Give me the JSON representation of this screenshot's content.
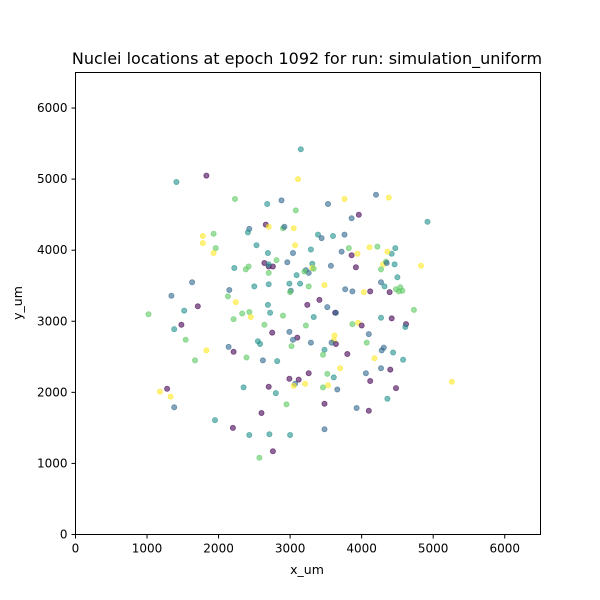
{
  "chart_data": {
    "type": "scatter",
    "title": "Nuclei locations at epoch 1092 for run: simulation_uniform",
    "xlabel": "x_um",
    "ylabel": "y_um",
    "xlim": [
      0,
      6500
    ],
    "ylim": [
      0,
      6500
    ],
    "xticks": [
      0,
      1000,
      2000,
      3000,
      4000,
      5000,
      6000
    ],
    "yticks": [
      0,
      1000,
      2000,
      3000,
      4000,
      5000,
      6000
    ],
    "grid": false,
    "legend": "none",
    "marker_alpha": 0.6,
    "colormap": "viridis",
    "palette": {
      "p": "#440154",
      "b": "#31688e",
      "t": "#21918c",
      "g": "#5ec962",
      "y": "#fde725"
    },
    "points": [
      {
        "x": 3150,
        "y": 5420,
        "c": "t"
      },
      {
        "x": 1410,
        "y": 4960,
        "c": "t"
      },
      {
        "x": 1830,
        "y": 5050,
        "c": "p"
      },
      {
        "x": 3110,
        "y": 5000,
        "c": "y"
      },
      {
        "x": 2230,
        "y": 4720,
        "c": "g"
      },
      {
        "x": 2680,
        "y": 4650,
        "c": "t"
      },
      {
        "x": 2880,
        "y": 4700,
        "c": "b"
      },
      {
        "x": 3080,
        "y": 4560,
        "c": "g"
      },
      {
        "x": 3530,
        "y": 4650,
        "c": "b"
      },
      {
        "x": 3760,
        "y": 4720,
        "c": "y"
      },
      {
        "x": 4380,
        "y": 4740,
        "c": "y"
      },
      {
        "x": 4200,
        "y": 4780,
        "c": "b"
      },
      {
        "x": 3860,
        "y": 4450,
        "c": "b"
      },
      {
        "x": 3960,
        "y": 4500,
        "c": "p"
      },
      {
        "x": 4920,
        "y": 4400,
        "c": "t"
      },
      {
        "x": 1780,
        "y": 4200,
        "c": "y"
      },
      {
        "x": 1930,
        "y": 4230,
        "c": "g"
      },
      {
        "x": 1780,
        "y": 4100,
        "c": "y"
      },
      {
        "x": 1960,
        "y": 4030,
        "c": "g"
      },
      {
        "x": 1930,
        "y": 3960,
        "c": "y"
      },
      {
        "x": 2430,
        "y": 4300,
        "c": "b"
      },
      {
        "x": 2410,
        "y": 4250,
        "c": "t"
      },
      {
        "x": 2530,
        "y": 4070,
        "c": "t"
      },
      {
        "x": 2660,
        "y": 4360,
        "c": "p"
      },
      {
        "x": 2700,
        "y": 4330,
        "c": "y"
      },
      {
        "x": 2900,
        "y": 4310,
        "c": "g"
      },
      {
        "x": 2920,
        "y": 4330,
        "c": "b"
      },
      {
        "x": 3050,
        "y": 4310,
        "c": "y"
      },
      {
        "x": 3070,
        "y": 4070,
        "c": "y"
      },
      {
        "x": 2690,
        "y": 3960,
        "c": "t"
      },
      {
        "x": 3040,
        "y": 3960,
        "c": "b"
      },
      {
        "x": 3290,
        "y": 4010,
        "c": "t"
      },
      {
        "x": 3390,
        "y": 4220,
        "c": "t"
      },
      {
        "x": 3440,
        "y": 4170,
        "c": "b"
      },
      {
        "x": 3600,
        "y": 4200,
        "c": "t"
      },
      {
        "x": 3760,
        "y": 4220,
        "c": "b"
      },
      {
        "x": 3820,
        "y": 4030,
        "c": "g"
      },
      {
        "x": 3720,
        "y": 3980,
        "c": "b"
      },
      {
        "x": 3860,
        "y": 3930,
        "c": "p"
      },
      {
        "x": 3940,
        "y": 3950,
        "c": "y"
      },
      {
        "x": 4110,
        "y": 4040,
        "c": "y"
      },
      {
        "x": 4220,
        "y": 4050,
        "c": "g"
      },
      {
        "x": 4420,
        "y": 3950,
        "c": "t"
      },
      {
        "x": 4470,
        "y": 4030,
        "c": "t"
      },
      {
        "x": 4360,
        "y": 3980,
        "c": "y"
      },
      {
        "x": 4300,
        "y": 3800,
        "c": "y"
      },
      {
        "x": 4340,
        "y": 3840,
        "c": "g"
      },
      {
        "x": 4270,
        "y": 3730,
        "c": "g"
      },
      {
        "x": 4350,
        "y": 3820,
        "c": "b"
      },
      {
        "x": 4460,
        "y": 3800,
        "c": "t"
      },
      {
        "x": 4500,
        "y": 3620,
        "c": "t"
      },
      {
        "x": 4830,
        "y": 3780,
        "c": "y"
      },
      {
        "x": 3920,
        "y": 3760,
        "c": "p"
      },
      {
        "x": 3570,
        "y": 3780,
        "c": "b"
      },
      {
        "x": 3310,
        "y": 3810,
        "c": "t"
      },
      {
        "x": 3310,
        "y": 3750,
        "c": "y"
      },
      {
        "x": 3330,
        "y": 3740,
        "c": "g"
      },
      {
        "x": 3220,
        "y": 3720,
        "c": "b"
      },
      {
        "x": 3260,
        "y": 3680,
        "c": "b"
      },
      {
        "x": 3200,
        "y": 3700,
        "c": "g"
      },
      {
        "x": 3090,
        "y": 3650,
        "c": "t"
      },
      {
        "x": 2960,
        "y": 3830,
        "c": "b"
      },
      {
        "x": 2810,
        "y": 3860,
        "c": "g"
      },
      {
        "x": 2640,
        "y": 3820,
        "c": "p"
      },
      {
        "x": 2700,
        "y": 3770,
        "c": "p"
      },
      {
        "x": 2760,
        "y": 3770,
        "c": "p"
      },
      {
        "x": 2700,
        "y": 3800,
        "c": "t"
      },
      {
        "x": 2700,
        "y": 3680,
        "c": "g"
      },
      {
        "x": 2420,
        "y": 3770,
        "c": "g"
      },
      {
        "x": 2380,
        "y": 3730,
        "c": "g"
      },
      {
        "x": 2220,
        "y": 3750,
        "c": "t"
      },
      {
        "x": 1630,
        "y": 3550,
        "c": "b"
      },
      {
        "x": 2500,
        "y": 3490,
        "c": "t"
      },
      {
        "x": 2700,
        "y": 3520,
        "c": "t"
      },
      {
        "x": 2990,
        "y": 3530,
        "c": "t"
      },
      {
        "x": 3010,
        "y": 3430,
        "c": "b"
      },
      {
        "x": 3140,
        "y": 3530,
        "c": "t"
      },
      {
        "x": 3260,
        "y": 3490,
        "c": "g"
      },
      {
        "x": 3480,
        "y": 3510,
        "c": "y"
      },
      {
        "x": 3770,
        "y": 3450,
        "c": "b"
      },
      {
        "x": 3870,
        "y": 3420,
        "c": "b"
      },
      {
        "x": 4030,
        "y": 3410,
        "c": "y"
      },
      {
        "x": 4120,
        "y": 3420,
        "c": "p"
      },
      {
        "x": 4270,
        "y": 3550,
        "c": "b"
      },
      {
        "x": 4320,
        "y": 3490,
        "c": "t"
      },
      {
        "x": 4390,
        "y": 3410,
        "c": "p"
      },
      {
        "x": 4480,
        "y": 3450,
        "c": "g"
      },
      {
        "x": 4540,
        "y": 3480,
        "c": "g"
      },
      {
        "x": 4570,
        "y": 3430,
        "c": "g"
      },
      {
        "x": 4520,
        "y": 3420,
        "c": "g"
      },
      {
        "x": 4730,
        "y": 3160,
        "c": "g"
      },
      {
        "x": 2150,
        "y": 3440,
        "c": "b"
      },
      {
        "x": 2130,
        "y": 3350,
        "c": "g"
      },
      {
        "x": 1340,
        "y": 3360,
        "c": "b"
      },
      {
        "x": 1710,
        "y": 3210,
        "c": "p"
      },
      {
        "x": 1520,
        "y": 3150,
        "c": "t"
      },
      {
        "x": 1020,
        "y": 3100,
        "c": "g"
      },
      {
        "x": 2240,
        "y": 3270,
        "c": "y"
      },
      {
        "x": 2430,
        "y": 3130,
        "c": "g"
      },
      {
        "x": 2450,
        "y": 3060,
        "c": "y"
      },
      {
        "x": 2690,
        "y": 3230,
        "c": "t"
      },
      {
        "x": 2720,
        "y": 3120,
        "c": "t"
      },
      {
        "x": 2330,
        "y": 3110,
        "c": "g"
      },
      {
        "x": 2210,
        "y": 3030,
        "c": "g"
      },
      {
        "x": 2900,
        "y": 3080,
        "c": "g"
      },
      {
        "x": 3000,
        "y": 3410,
        "c": "g"
      },
      {
        "x": 3240,
        "y": 3230,
        "c": "p"
      },
      {
        "x": 3410,
        "y": 3300,
        "c": "p"
      },
      {
        "x": 3520,
        "y": 3200,
        "c": "b"
      },
      {
        "x": 3630,
        "y": 3120,
        "c": "p"
      },
      {
        "x": 3330,
        "y": 3060,
        "c": "t"
      },
      {
        "x": 3640,
        "y": 3120,
        "c": "b"
      },
      {
        "x": 1480,
        "y": 2950,
        "c": "p"
      },
      {
        "x": 1380,
        "y": 2890,
        "c": "t"
      },
      {
        "x": 1540,
        "y": 2740,
        "c": "g"
      },
      {
        "x": 2640,
        "y": 2950,
        "c": "g"
      },
      {
        "x": 2750,
        "y": 2840,
        "c": "p"
      },
      {
        "x": 2990,
        "y": 2850,
        "c": "b"
      },
      {
        "x": 3220,
        "y": 2940,
        "c": "g"
      },
      {
        "x": 3100,
        "y": 2770,
        "c": "p"
      },
      {
        "x": 3040,
        "y": 2740,
        "c": "b"
      },
      {
        "x": 3020,
        "y": 2650,
        "c": "g"
      },
      {
        "x": 3290,
        "y": 2700,
        "c": "b"
      },
      {
        "x": 3620,
        "y": 2800,
        "c": "y"
      },
      {
        "x": 3610,
        "y": 2730,
        "c": "y"
      },
      {
        "x": 3640,
        "y": 2680,
        "c": "p"
      },
      {
        "x": 3580,
        "y": 2700,
        "c": "b"
      },
      {
        "x": 3480,
        "y": 2600,
        "c": "t"
      },
      {
        "x": 3870,
        "y": 2960,
        "c": "g"
      },
      {
        "x": 3950,
        "y": 2980,
        "c": "y"
      },
      {
        "x": 4000,
        "y": 2940,
        "c": "p"
      },
      {
        "x": 4100,
        "y": 2820,
        "c": "b"
      },
      {
        "x": 4270,
        "y": 3050,
        "c": "t"
      },
      {
        "x": 4420,
        "y": 3040,
        "c": "p"
      },
      {
        "x": 4620,
        "y": 2960,
        "c": "p"
      },
      {
        "x": 4610,
        "y": 2920,
        "c": "t"
      },
      {
        "x": 4280,
        "y": 2590,
        "c": "b"
      },
      {
        "x": 4310,
        "y": 2630,
        "c": "b"
      },
      {
        "x": 4440,
        "y": 2560,
        "c": "t"
      },
      {
        "x": 4580,
        "y": 2460,
        "c": "t"
      },
      {
        "x": 4180,
        "y": 2480,
        "c": "y"
      },
      {
        "x": 4070,
        "y": 2700,
        "c": "g"
      },
      {
        "x": 3800,
        "y": 2540,
        "c": "p"
      },
      {
        "x": 3460,
        "y": 2530,
        "c": "g"
      },
      {
        "x": 3700,
        "y": 2340,
        "c": "y"
      },
      {
        "x": 3520,
        "y": 2260,
        "c": "g"
      },
      {
        "x": 3610,
        "y": 2210,
        "c": "t"
      },
      {
        "x": 3260,
        "y": 2270,
        "c": "p"
      },
      {
        "x": 2140,
        "y": 2640,
        "c": "b"
      },
      {
        "x": 2210,
        "y": 2570,
        "c": "p"
      },
      {
        "x": 1830,
        "y": 2590,
        "c": "y"
      },
      {
        "x": 1670,
        "y": 2450,
        "c": "g"
      },
      {
        "x": 2390,
        "y": 2490,
        "c": "g"
      },
      {
        "x": 2580,
        "y": 2680,
        "c": "t"
      },
      {
        "x": 2550,
        "y": 2720,
        "c": "t"
      },
      {
        "x": 2620,
        "y": 2450,
        "c": "b"
      },
      {
        "x": 2820,
        "y": 2440,
        "c": "t"
      },
      {
        "x": 1280,
        "y": 2050,
        "c": "p"
      },
      {
        "x": 1180,
        "y": 2010,
        "c": "y"
      },
      {
        "x": 1330,
        "y": 1940,
        "c": "y"
      },
      {
        "x": 1380,
        "y": 1790,
        "c": "b"
      },
      {
        "x": 2350,
        "y": 2070,
        "c": "t"
      },
      {
        "x": 2700,
        "y": 2080,
        "c": "p"
      },
      {
        "x": 2800,
        "y": 1990,
        "c": "t"
      },
      {
        "x": 2990,
        "y": 2190,
        "c": "p"
      },
      {
        "x": 3070,
        "y": 2120,
        "c": "b"
      },
      {
        "x": 3120,
        "y": 2180,
        "c": "p"
      },
      {
        "x": 3210,
        "y": 2120,
        "c": "y"
      },
      {
        "x": 3050,
        "y": 2090,
        "c": "y"
      },
      {
        "x": 2950,
        "y": 1830,
        "c": "g"
      },
      {
        "x": 3460,
        "y": 2070,
        "c": "g"
      },
      {
        "x": 3530,
        "y": 2100,
        "c": "y"
      },
      {
        "x": 3480,
        "y": 1840,
        "c": "p"
      },
      {
        "x": 3660,
        "y": 2040,
        "c": "b"
      },
      {
        "x": 4060,
        "y": 2270,
        "c": "b"
      },
      {
        "x": 4120,
        "y": 2160,
        "c": "p"
      },
      {
        "x": 4270,
        "y": 2340,
        "c": "b"
      },
      {
        "x": 4400,
        "y": 2320,
        "c": "p"
      },
      {
        "x": 4480,
        "y": 2060,
        "c": "p"
      },
      {
        "x": 4360,
        "y": 1910,
        "c": "t"
      },
      {
        "x": 3930,
        "y": 1780,
        "c": "b"
      },
      {
        "x": 4100,
        "y": 1740,
        "c": "p"
      },
      {
        "x": 5260,
        "y": 2150,
        "c": "y"
      },
      {
        "x": 1950,
        "y": 1610,
        "c": "t"
      },
      {
        "x": 2200,
        "y": 1500,
        "c": "p"
      },
      {
        "x": 2600,
        "y": 1710,
        "c": "p"
      },
      {
        "x": 2430,
        "y": 1400,
        "c": "t"
      },
      {
        "x": 2710,
        "y": 1410,
        "c": "t"
      },
      {
        "x": 3000,
        "y": 1400,
        "c": "t"
      },
      {
        "x": 3480,
        "y": 1480,
        "c": "b"
      },
      {
        "x": 2570,
        "y": 1080,
        "c": "g"
      },
      {
        "x": 2760,
        "y": 1170,
        "c": "p"
      }
    ]
  }
}
